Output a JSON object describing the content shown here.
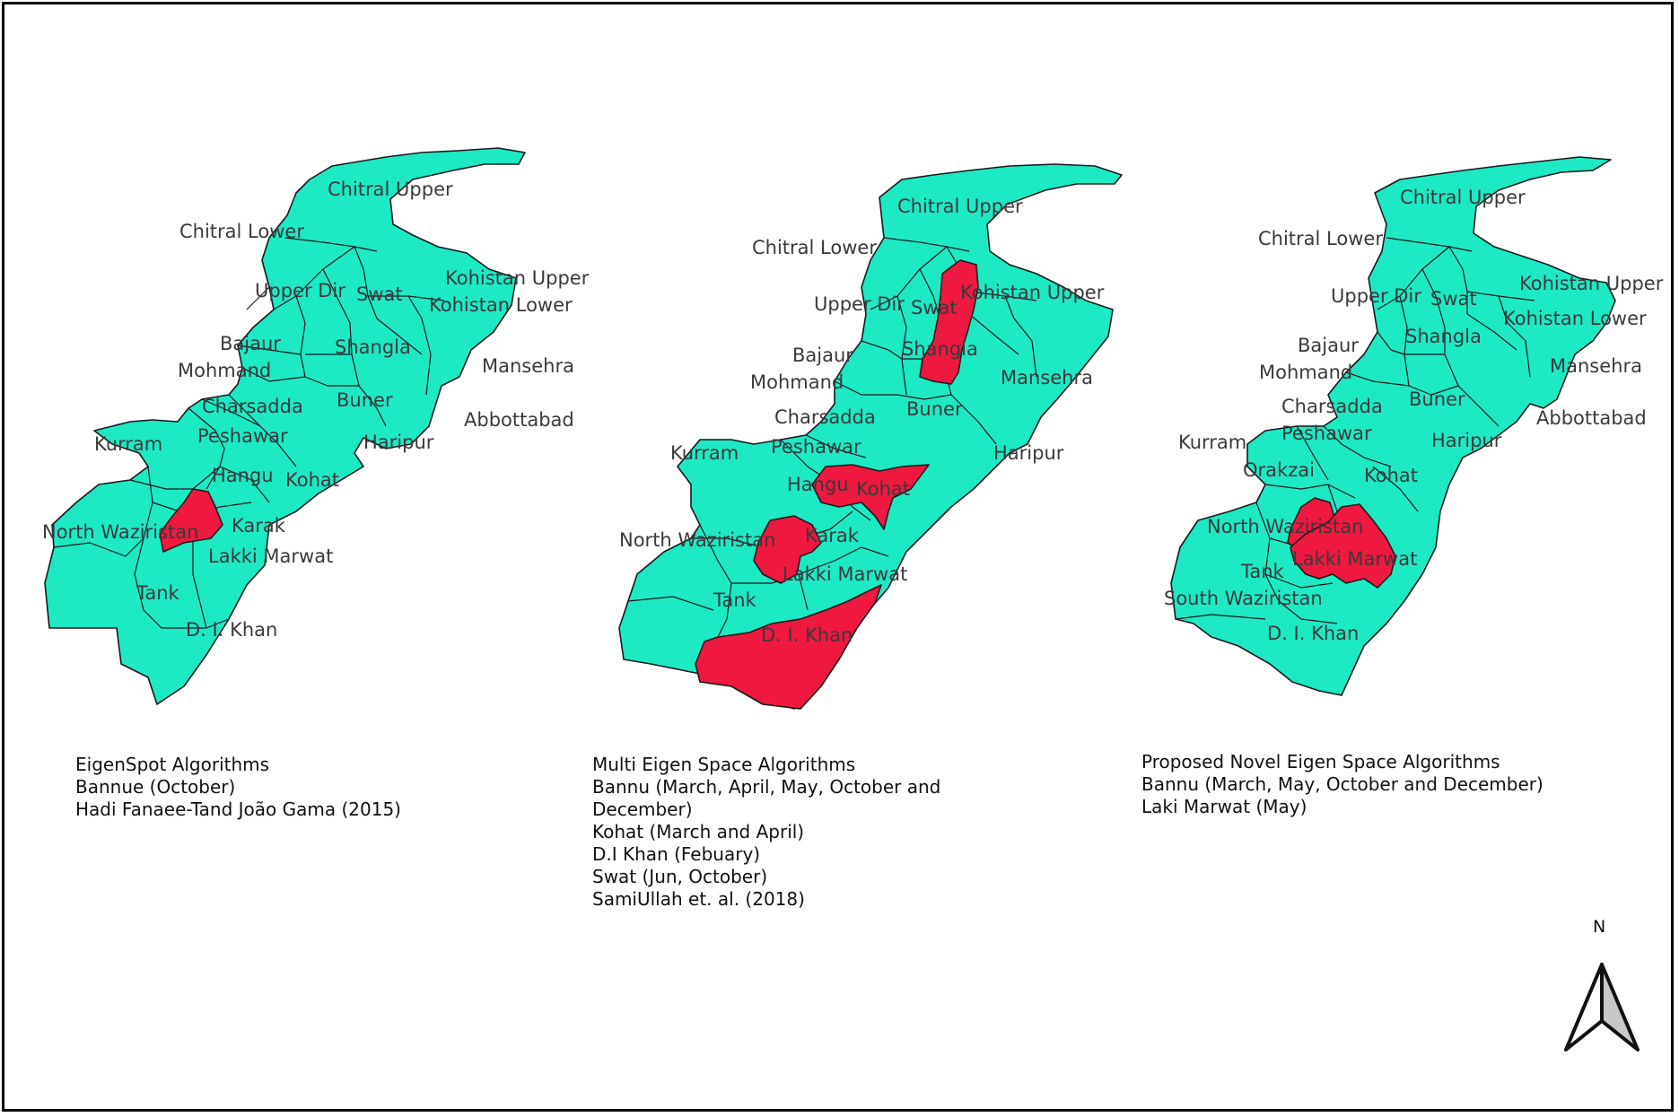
{
  "colors": {
    "region": "#1de9c3",
    "highlight": "#ee1840",
    "border": "#1a1a1a"
  },
  "maps": [
    {
      "labels": {
        "chitral_upper": "Chitral Upper",
        "chitral_lower": "Chitral Lower",
        "upper_dir": "Upper Dir",
        "swat": "Swat",
        "kohistan_upper": "Kohistan Upper",
        "kohistan_lower": "Kohistan Lower",
        "bajaur": "Bajaur",
        "shangla": "Shangla",
        "mohmand": "Mohmand",
        "mansehra": "Mansehra",
        "charsadda": "Charsadda",
        "buner": "Buner",
        "abbottabad": "Abbottabad",
        "kurram": "Kurram",
        "peshawar": "Peshawar",
        "haripur": "Haripur",
        "hangu": "Hangu",
        "kohat": "Kohat",
        "north_waziristan": "North Waziristan",
        "karak": "Karak",
        "lakki_marwat": "Lakki Marwat",
        "tank": "Tank",
        "di_khan": "D. I. Khan"
      },
      "highlighted": [
        "Bannu"
      ],
      "caption": [
        "EigenSpot Algorithms",
        "Bannue (October)",
        "Hadi Fanaee-Tand João Gama (2015)"
      ]
    },
    {
      "labels": {
        "chitral_upper": "Chitral Upper",
        "chitral_lower": "Chitral Lower",
        "upper_dir": "Upper Dir",
        "swat": "Swat",
        "kohistan_upper": "Kohistan Upper",
        "bajaur": "Bajaur",
        "shangla": "Shangla",
        "mohmand": "Mohmand",
        "mansehra": "Mansehra",
        "charsadda": "Charsadda",
        "buner": "Buner",
        "kurram": "Kurram",
        "peshawar": "Peshawar",
        "haripur": "Haripur",
        "hangu": "Hangu",
        "kohat": "Kohat",
        "north_waziristan": "North Waziristan",
        "karak": "Karak",
        "lakki_marwat": "Lakki Marwat",
        "tank": "Tank",
        "di_khan": "D. I. Khan"
      },
      "highlighted": [
        "Swat",
        "Kohat",
        "Bannu",
        "D. I. Khan"
      ],
      "caption": [
        "Multi Eigen Space Algorithms",
        "Bannu (March, April, May, October and",
        "December)",
        "Kohat (March and April)",
        "D.I Khan (Febuary)",
        "Swat (Jun, October)",
        "SamiUllah et. al. (2018)"
      ]
    },
    {
      "labels": {
        "chitral_upper": "Chitral Upper",
        "chitral_lower": "Chitral Lower",
        "upper_dir": "Upper Dir",
        "swat": "Swat",
        "kohistan_upper": "Kohistan Upper",
        "kohistan_lower": "Kohistan Lower",
        "bajaur": "Bajaur",
        "shangla": "Shangla",
        "mohmand": "Mohmand",
        "mansehra": "Mansehra",
        "charsadda": "Charsadda",
        "buner": "Buner",
        "abbottabad": "Abbottabad",
        "kurram": "Kurram",
        "peshawar": "Peshawar",
        "haripur": "Haripur",
        "orakzai": "Orakzai",
        "kohat": "Kohat",
        "north_waziristan": "North Waziristan",
        "lakki_marwat": "Lakki Marwat",
        "tank": "Tank",
        "south_waziristan": "South Waziristan",
        "di_khan": "D. I. Khan"
      },
      "highlighted": [
        "Bannu",
        "Lakki Marwat"
      ],
      "caption": [
        "Proposed Novel Eigen Space Algorithms",
        "Bannu (March, May, October and December)",
        "Laki Marwat (May)"
      ]
    }
  ],
  "north_arrow": {
    "label": "N"
  }
}
